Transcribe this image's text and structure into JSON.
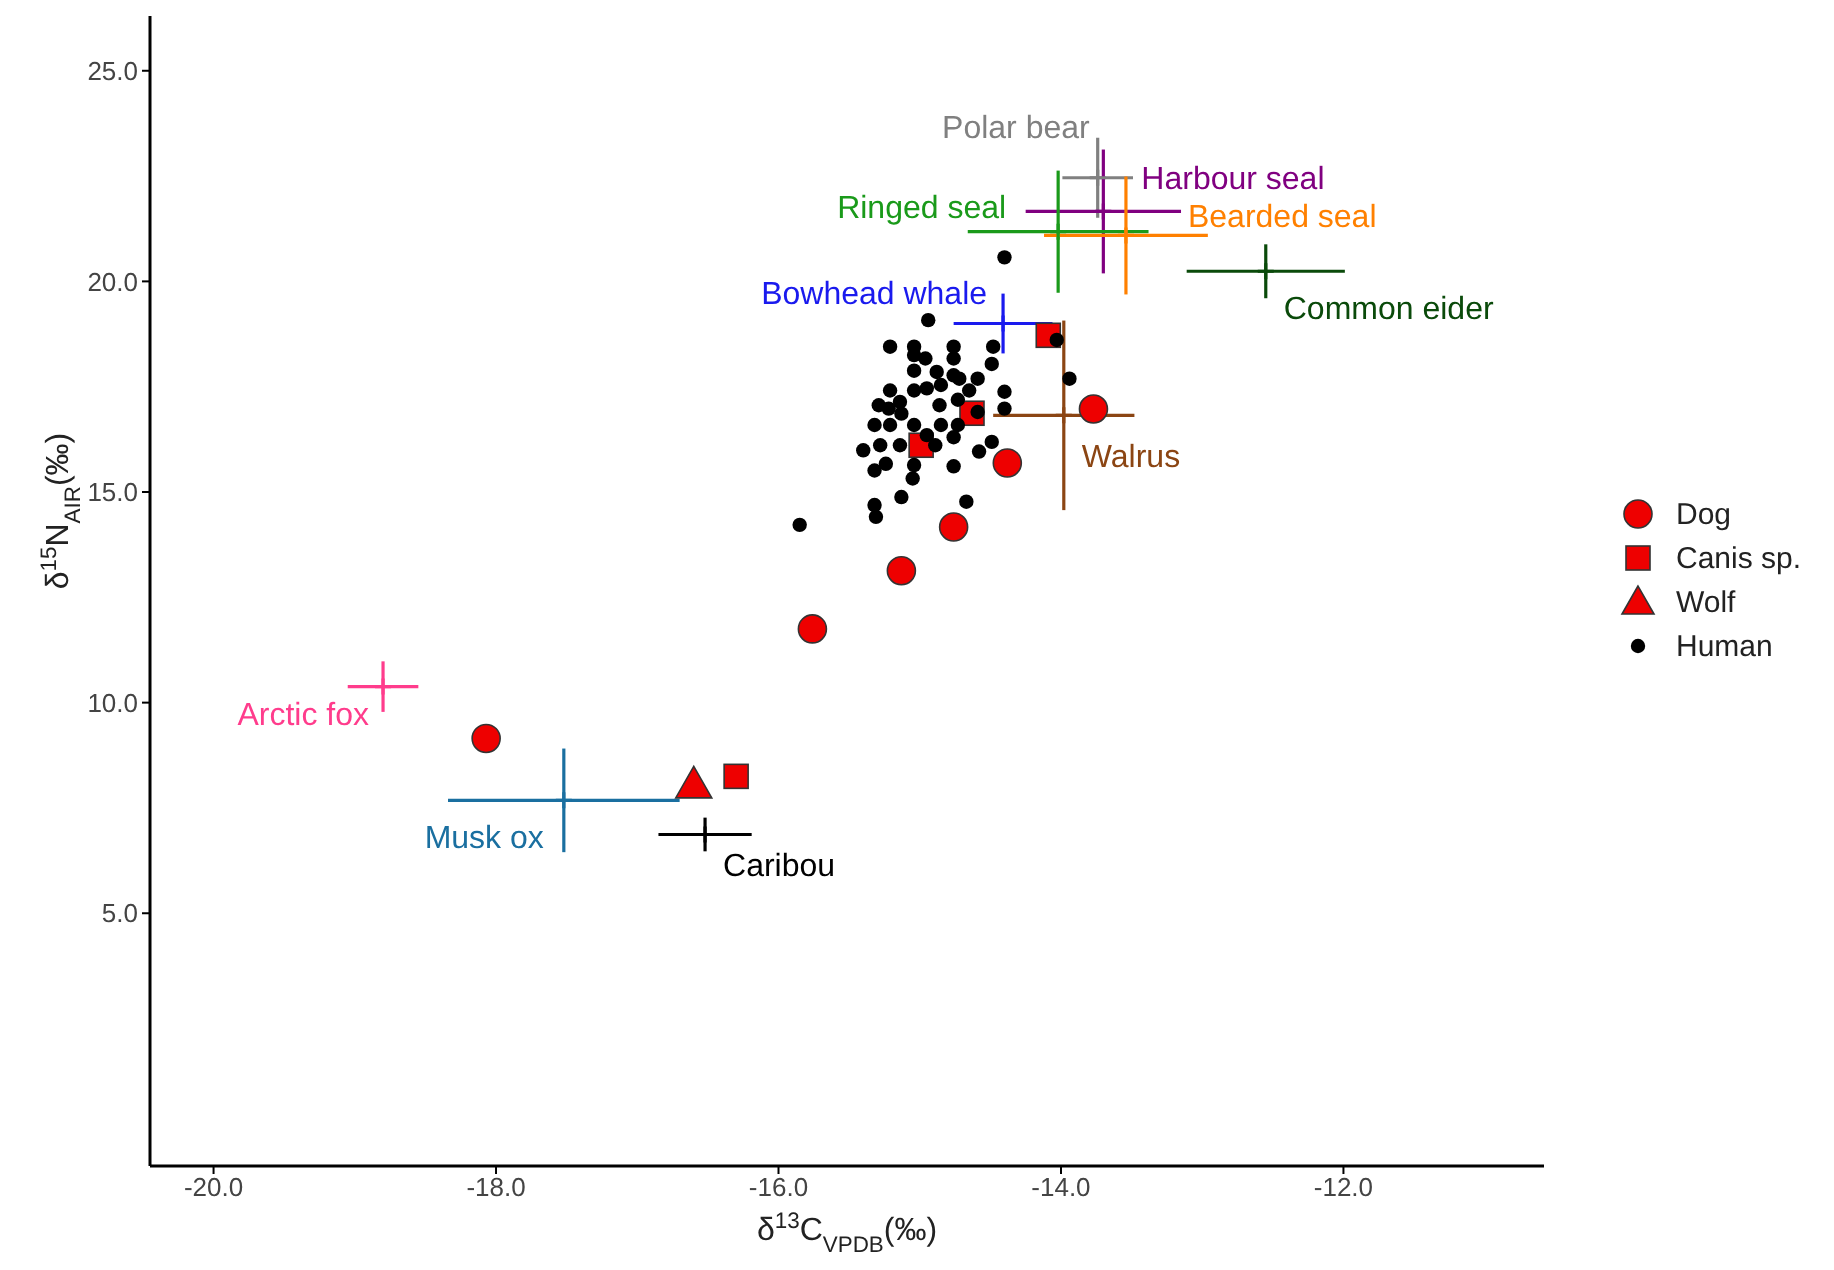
{
  "chart_data": {
    "type": "scatter",
    "xlabel": "δ$^{13}$C$_{VPDB}$(‰)",
    "ylabel": "δ$^{15}$N$_{AIR}$(‰)",
    "xlim": [
      -20.45,
      -10.58
    ],
    "ylim": [
      -1,
      26.3
    ],
    "xticks": [
      {
        "value": -20,
        "label": "-20.0"
      },
      {
        "value": -18,
        "label": "-18.0"
      },
      {
        "value": -16,
        "label": "-16.0"
      },
      {
        "value": -14,
        "label": "-14.0"
      },
      {
        "value": -12,
        "label": "-12.0"
      }
    ],
    "yticks": [
      {
        "value": 5,
        "label": "5.0"
      },
      {
        "value": 10,
        "label": "10.0"
      },
      {
        "value": 15,
        "label": "15.0"
      },
      {
        "value": 20,
        "label": "20.0"
      },
      {
        "value": 25,
        "label": "25.0"
      }
    ],
    "grid": false,
    "legend": "right",
    "series": [
      {
        "name": "Polar bear",
        "color": "#808080",
        "marker": "cross",
        "x": [
          -13.74
        ],
        "values": [
          22.46
        ],
        "xerrors": [
          0.25
        ],
        "errors": [
          0.95
        ]
      },
      {
        "name": "Harbour seal",
        "color": "#800080",
        "marker": "cross",
        "x": [
          -13.7
        ],
        "values": [
          21.66
        ],
        "xerrors": [
          0.55
        ],
        "errors": [
          1.47
        ]
      },
      {
        "name": "Ringed seal",
        "color": "#1a9a1a",
        "marker": "cross",
        "x": [
          -14.02
        ],
        "values": [
          21.18
        ],
        "xerrors": [
          0.64
        ],
        "errors": [
          1.45
        ]
      },
      {
        "name": "Bearded seal",
        "color": "#ff8000",
        "marker": "cross",
        "x": [
          -13.54
        ],
        "values": [
          21.09
        ],
        "xerrors": [
          0.58
        ],
        "errors": [
          1.4
        ]
      },
      {
        "name": "Common eider",
        "color": "#0a4a0a",
        "marker": "cross",
        "x": [
          -12.55
        ],
        "values": [
          20.24
        ],
        "xerrors": [
          0.56
        ],
        "errors": [
          0.64
        ]
      },
      {
        "name": "Bowhead whale",
        "color": "#1a1aee",
        "marker": "cross",
        "x": [
          -14.41
        ],
        "values": [
          19.0
        ],
        "xerrors": [
          0.35
        ],
        "errors": [
          0.71
        ]
      },
      {
        "name": "Walrus",
        "color": "#8b4513",
        "marker": "cross",
        "x": [
          -13.98
        ],
        "values": [
          16.82
        ],
        "xerrors": [
          0.5
        ],
        "errors": [
          2.25
        ]
      },
      {
        "name": "Arctic fox",
        "color": "#ff3c8c",
        "marker": "cross",
        "x": [
          -18.8
        ],
        "values": [
          10.38
        ],
        "xerrors": [
          0.25
        ],
        "errors": [
          0.6
        ]
      },
      {
        "name": "Musk ox",
        "color": "#1a6fa0",
        "marker": "cross",
        "x": [
          -17.52
        ],
        "values": [
          7.68
        ],
        "xerrors": [
          0.82
        ],
        "errors": [
          1.23
        ]
      },
      {
        "name": "Caribou",
        "color": "#000000",
        "marker": "cross",
        "x": [
          -16.52
        ],
        "values": [
          6.87
        ],
        "xerrors": [
          0.33
        ],
        "errors": [
          0.4
        ]
      },
      {
        "name": "Dog",
        "color": "#ee0000",
        "marker": "circle",
        "x": [
          -18.07,
          -15.76,
          -15.13,
          -14.76,
          -14.38,
          -13.77
        ],
        "values": [
          9.15,
          11.75,
          13.13,
          14.17,
          15.69,
          16.97
        ]
      },
      {
        "name": "Canis sp.",
        "color": "#ee0000",
        "marker": "square",
        "x": [
          -14.09,
          -14.63,
          -14.99,
          -16.3
        ],
        "values": [
          18.72,
          16.87,
          16.11,
          8.25
        ]
      },
      {
        "name": "Wolf",
        "color": "#ee0000",
        "marker": "triangle",
        "x": [
          -16.6
        ],
        "values": [
          8.06
        ]
      },
      {
        "name": "Human",
        "color": "#000000",
        "marker": "circle",
        "x": [
          -14.94,
          -15.21,
          -15.04,
          -14.76,
          -14.48,
          -15.04,
          -14.96,
          -14.76,
          -14.49,
          -15.04,
          -14.88,
          -14.76,
          -14.72,
          -14.59,
          -14.03,
          -13.94,
          -15.21,
          -15.04,
          -14.95,
          -14.85,
          -14.65,
          -15.29,
          -15.14,
          -14.86,
          -14.73,
          -14.4,
          -14.4,
          -15.32,
          -15.21,
          -15.04,
          -14.85,
          -14.73,
          -14.59,
          -15.4,
          -15.28,
          -15.14,
          -14.89,
          -14.76,
          -14.49,
          -14.58,
          -15.24,
          -15.04,
          -14.76,
          -15.32,
          -15.05,
          -15.13,
          -14.67,
          -15.32,
          -15.31,
          -15.85,
          -14.95,
          -15.22,
          -15.13,
          -14.4
        ],
        "values": [
          19.08,
          18.45,
          18.45,
          18.45,
          18.45,
          18.25,
          18.17,
          18.17,
          18.04,
          17.88,
          17.85,
          17.77,
          17.69,
          17.69,
          18.61,
          17.69,
          17.41,
          17.41,
          17.46,
          17.54,
          17.41,
          17.06,
          17.14,
          17.06,
          17.19,
          17.38,
          16.98,
          16.59,
          16.59,
          16.59,
          16.59,
          16.59,
          16.9,
          15.99,
          16.11,
          16.11,
          16.11,
          16.3,
          16.19,
          15.96,
          15.67,
          15.64,
          15.61,
          15.51,
          15.32,
          14.88,
          14.77,
          14.69,
          14.41,
          14.22,
          16.35,
          16.98,
          16.86,
          20.57
        ]
      }
    ]
  }
}
